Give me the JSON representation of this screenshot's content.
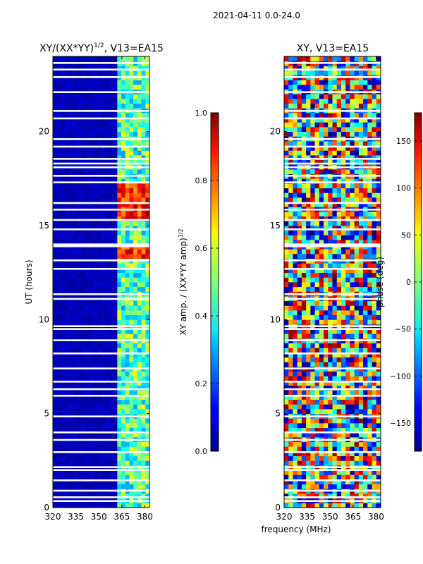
{
  "figure": {
    "suptitle": "2021-04-11 0.0-24.0",
    "shared_xlabel": "frequency (MHz)"
  },
  "chart_data": [
    {
      "type": "heatmap",
      "title_main": "XY/(XX*YY)",
      "title_exp": "1/2",
      "title_tail": ", V13=EA15",
      "ylabel": "UT (hours)",
      "xlim": [
        320,
        383
      ],
      "ylim": [
        0,
        24
      ],
      "xticks": [
        "320",
        "335",
        "350",
        "365",
        "380"
      ],
      "xtick_values": [
        320,
        335,
        350,
        365,
        380
      ],
      "yticks": [
        "0",
        "5",
        "10",
        "15",
        "20"
      ],
      "ytick_values": [
        0,
        5,
        10,
        15,
        20
      ],
      "colorbar": {
        "label_main": "XY amp. / (XX*YY amp)",
        "label_exp": "1/2",
        "range": [
          0.0,
          1.0
        ],
        "ticks": [
          "0.0",
          "0.2",
          "0.4",
          "0.6",
          "0.8",
          "1.0"
        ],
        "tick_values": [
          0.0,
          0.2,
          0.4,
          0.6,
          0.8,
          1.0
        ],
        "colormap": "jet"
      },
      "flagged_hours": [
        0.35,
        0.55,
        0.9,
        1.45,
        2.0,
        2.15,
        2.95,
        3.6,
        4.0,
        4.85,
        5.95,
        6.3,
        6.7,
        7.4,
        8.2,
        8.9,
        9.5,
        9.65,
        11.1,
        11.35,
        12.7,
        13.15,
        13.9,
        14.0,
        14.8,
        15.3,
        15.85,
        16.2,
        17.3,
        17.65,
        18.1,
        18.3,
        18.55,
        19.2,
        19.6,
        20.7,
        21.1,
        22.1,
        22.9,
        23.3,
        23.65
      ],
      "band_summary": [
        {
          "from_mhz": 320,
          "to_mhz": 362,
          "level": 0.03
        },
        {
          "from_mhz": 362,
          "to_mhz": 383,
          "level": 0.45
        }
      ],
      "high_ut_ranges": [
        [
          13.2,
          13.9
        ],
        [
          15.2,
          17.2
        ]
      ]
    },
    {
      "type": "heatmap",
      "title": "XY, V13=EA15",
      "xlim": [
        320,
        383
      ],
      "ylim": [
        0,
        24
      ],
      "xticks": [
        "320",
        "335",
        "350",
        "365",
        "380"
      ],
      "xtick_values": [
        320,
        335,
        350,
        365,
        380
      ],
      "yticks": [
        "0",
        "5",
        "10",
        "15",
        "20"
      ],
      "ytick_values": [
        0,
        5,
        10,
        15,
        20
      ],
      "colorbar": {
        "label": "phase (deg)",
        "range": [
          -180,
          180
        ],
        "ticks": [
          "−150",
          "−100",
          "−50",
          "0",
          "50",
          "100",
          "150"
        ],
        "tick_values": [
          -150,
          -100,
          -50,
          0,
          50,
          100,
          150
        ],
        "colormap": "jet"
      },
      "flagged_hours": [
        0.35,
        0.55,
        0.9,
        1.45,
        2.0,
        2.15,
        2.95,
        3.6,
        4.0,
        4.85,
        5.95,
        6.3,
        6.7,
        7.4,
        8.2,
        8.9,
        9.5,
        9.65,
        11.1,
        11.35,
        12.7,
        13.15,
        13.9,
        14.0,
        14.8,
        15.3,
        15.85,
        16.2,
        17.3,
        17.65,
        18.1,
        18.3,
        18.55,
        19.2,
        19.6,
        20.7,
        21.1,
        22.1,
        22.9,
        23.3,
        23.65
      ],
      "phase_pattern": "random"
    }
  ]
}
